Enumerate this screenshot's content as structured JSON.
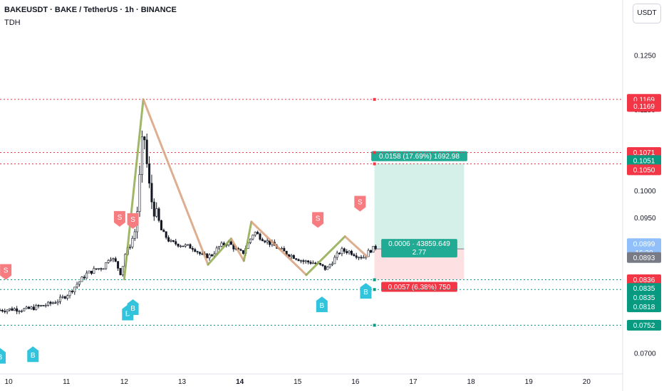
{
  "header": {
    "title": "BAKEUSDT · BAKE / TetherUS · 1h · BINANCE",
    "indicator": "TDH",
    "currency_button": "USDT"
  },
  "colors": {
    "bull": "#ffffff",
    "bear": "#131722",
    "red_level": "#f23645",
    "green_level": "#089981",
    "target_fill": "#d5efe9",
    "stop_fill": "#fde0e1",
    "zigzag_up": "#8faa4d",
    "zigzag_down": "#d7a07b",
    "sell_marker": "#f77c80",
    "buy_marker": "#31c4dc",
    "last_price": "#90bff9"
  },
  "chart_data": {
    "type": "candlestick",
    "symbol": "BAKEUSDT",
    "timeframe": "1h",
    "x_ticks": [
      {
        "label": "10",
        "day": 10,
        "bold": false
      },
      {
        "label": "11",
        "day": 11,
        "bold": false
      },
      {
        "label": "12",
        "day": 12,
        "bold": false
      },
      {
        "label": "13",
        "day": 13,
        "bold": false
      },
      {
        "label": "14",
        "day": 14,
        "bold": true
      },
      {
        "label": "15",
        "day": 15,
        "bold": false
      },
      {
        "label": "16",
        "day": 16,
        "bold": false
      },
      {
        "label": "17",
        "day": 17,
        "bold": false
      },
      {
        "label": "18",
        "day": 18,
        "bold": false
      },
      {
        "label": "19",
        "day": 19,
        "bold": false
      },
      {
        "label": "20",
        "day": 20,
        "bold": false
      }
    ],
    "x_range_days": [
      9.85,
      20.6
    ],
    "y_range": [
      0.067,
      0.13
    ],
    "y_ticks": [
      "0.1250",
      "0.1150",
      "0.1000",
      "0.0950",
      "0.0700"
    ],
    "price_path": [
      [
        9.85,
        0.078
      ],
      [
        10.1,
        0.0782
      ],
      [
        10.3,
        0.0781
      ],
      [
        10.5,
        0.0786
      ],
      [
        10.7,
        0.0791
      ],
      [
        10.9,
        0.08
      ],
      [
        11.05,
        0.0812
      ],
      [
        11.2,
        0.083
      ],
      [
        11.35,
        0.0847
      ],
      [
        11.5,
        0.0855
      ],
      [
        11.65,
        0.086
      ],
      [
        11.75,
        0.088
      ],
      [
        11.85,
        0.0868
      ],
      [
        11.95,
        0.0845
      ],
      [
        12.0,
        0.088
      ],
      [
        12.1,
        0.09
      ],
      [
        12.2,
        0.093
      ],
      [
        12.28,
        0.104
      ],
      [
        12.33,
        0.112
      ],
      [
        12.38,
        0.106
      ],
      [
        12.45,
        0.099
      ],
      [
        12.55,
        0.0955
      ],
      [
        12.65,
        0.0925
      ],
      [
        12.8,
        0.0905
      ],
      [
        13.0,
        0.09
      ],
      [
        13.2,
        0.0895
      ],
      [
        13.35,
        0.088
      ],
      [
        13.5,
        0.088
      ],
      [
        13.65,
        0.0898
      ],
      [
        13.8,
        0.0905
      ],
      [
        13.95,
        0.089
      ],
      [
        14.05,
        0.0885
      ],
      [
        14.15,
        0.0905
      ],
      [
        14.25,
        0.0925
      ],
      [
        14.35,
        0.0915
      ],
      [
        14.5,
        0.0905
      ],
      [
        14.65,
        0.0895
      ],
      [
        14.8,
        0.0885
      ],
      [
        14.95,
        0.0878
      ],
      [
        15.1,
        0.087
      ],
      [
        15.25,
        0.0868
      ],
      [
        15.4,
        0.0862
      ],
      [
        15.5,
        0.0855
      ],
      [
        15.6,
        0.087
      ],
      [
        15.75,
        0.089
      ],
      [
        15.9,
        0.0888
      ],
      [
        16.05,
        0.088
      ],
      [
        16.15,
        0.0878
      ],
      [
        16.25,
        0.089
      ],
      [
        16.35,
        0.0896
      ]
    ],
    "zigzag": [
      {
        "day": 12.0,
        "price": 0.0837
      },
      {
        "day": 12.33,
        "price": 0.1169
      },
      {
        "day": 13.45,
        "price": 0.0864
      },
      {
        "day": 13.85,
        "price": 0.0912
      },
      {
        "day": 14.07,
        "price": 0.0871
      },
      {
        "day": 14.2,
        "price": 0.0943
      },
      {
        "day": 15.15,
        "price": 0.0845
      },
      {
        "day": 15.82,
        "price": 0.0916
      },
      {
        "day": 16.2,
        "price": 0.0879
      }
    ],
    "levels": [
      {
        "price": 0.1169,
        "label": "0.1169",
        "color": "#f23645",
        "style": "dotted"
      },
      {
        "price": 0.1071,
        "label": "0.1071",
        "color": "#f23645",
        "style": "dotted"
      },
      {
        "price": 0.105,
        "label": "0.1050",
        "color": "#f23645",
        "style": "dotted"
      },
      {
        "price": 0.0836,
        "label": "0.0836",
        "color": "#089981",
        "style": "dotted"
      },
      {
        "price": 0.0818,
        "label": "0.0818",
        "color": "#089981",
        "style": "dotted"
      },
      {
        "price": 0.0752,
        "label": "0.0752",
        "color": "#089981",
        "style": "dotted"
      }
    ],
    "axis_badges": [
      {
        "label": "0.1169",
        "price": 0.1169,
        "color": "#f23645"
      },
      {
        "label": "0.1169",
        "price": 0.1156,
        "color": "#f23645"
      },
      {
        "label": "0.1071",
        "price": 0.1071,
        "color": "#f23645"
      },
      {
        "label": "0.1051",
        "price": 0.1056,
        "color": "#089981"
      },
      {
        "label": "0.1050",
        "price": 0.1039,
        "color": "#f23645"
      },
      {
        "label": "0.0899",
        "price": 0.0902,
        "color": "#90bff9",
        "sub": "16:30"
      },
      {
        "label": "0.0893",
        "price": 0.0877,
        "color": "#787b86"
      },
      {
        "label": "0.0836",
        "price": 0.0836,
        "color": "#f23645"
      },
      {
        "label": "0.0835",
        "price": 0.082,
        "color": "#089981"
      },
      {
        "label": "0.0835",
        "price": 0.0803,
        "color": "#089981"
      },
      {
        "label": "0.0818",
        "price": 0.0786,
        "color": "#089981"
      },
      {
        "label": "0.0752",
        "price": 0.0752,
        "color": "#089981"
      }
    ],
    "position": {
      "start_day": 16.33,
      "end_day": 17.88,
      "entry": 0.0893,
      "target": 0.1051,
      "stop": 0.0836,
      "target_label": "0.0158 (17.69%) 1692.98",
      "entry_label_1": "0.0006 · 43859.649",
      "entry_label_2": "2.77",
      "stop_label": "0.0057 (6.38%) 750"
    },
    "sell_signals": [
      {
        "day": 9.95,
        "price": 0.0836,
        "label": "S"
      },
      {
        "day": 11.92,
        "price": 0.0934,
        "label": "S"
      },
      {
        "day": 12.15,
        "price": 0.093,
        "label": "S"
      },
      {
        "day": 15.35,
        "price": 0.0932,
        "label": "S"
      },
      {
        "day": 16.08,
        "price": 0.0962,
        "label": "S"
      }
    ],
    "buy_signals": [
      {
        "day": 9.85,
        "price": 0.071,
        "label": "B"
      },
      {
        "day": 10.42,
        "price": 0.0713,
        "label": "B"
      },
      {
        "day": 12.06,
        "price": 0.079,
        "label": "B"
      },
      {
        "day": 12.15,
        "price": 0.08,
        "label": "B"
      },
      {
        "day": 15.42,
        "price": 0.0805,
        "label": "B"
      },
      {
        "day": 16.18,
        "price": 0.083,
        "label": "B"
      }
    ]
  }
}
